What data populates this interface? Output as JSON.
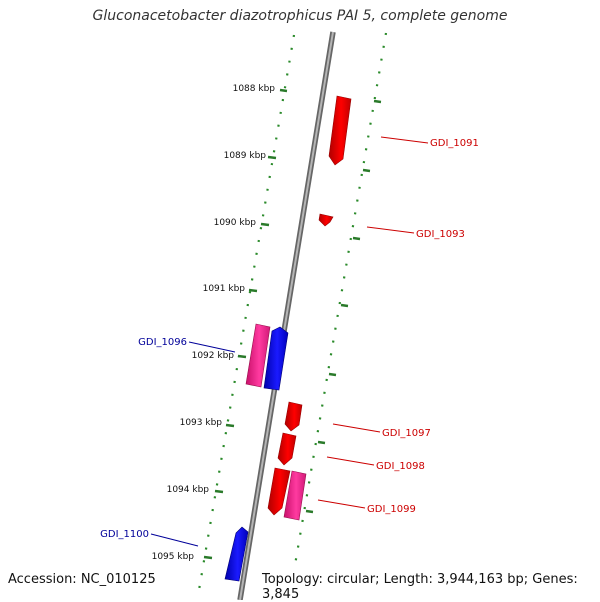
{
  "title": "Gluconacetobacter diazotrophicus PAI 5, complete genome",
  "footer": {
    "accession": "Accession: NC_010125",
    "topology": "Topology: circular; Length: 3,944,163 bp; Genes: 3,845"
  },
  "ticks": [
    "1088 kbp",
    "1089 kbp",
    "1090 kbp",
    "1091 kbp",
    "1092 kbp",
    "1093 kbp",
    "1094 kbp",
    "1095 kbp"
  ],
  "gene_labels": {
    "gdi_1091": "GDI_1091",
    "gdi_1093": "GDI_1093",
    "gdi_1096": "GDI_1096",
    "gdi_1097": "GDI_1097",
    "gdi_1098": "GDI_1098",
    "gdi_1099": "GDI_1099",
    "gdi_1100": "GDI_1100"
  },
  "colors": {
    "forward_gene": "#ff0000",
    "reverse_gene": "#0000ff",
    "pink_gene": "#ff2a9a",
    "forward_label": "#cc0000",
    "reverse_label": "#000099",
    "guide_dots": "#2a8a2a",
    "axis": "#888888"
  }
}
